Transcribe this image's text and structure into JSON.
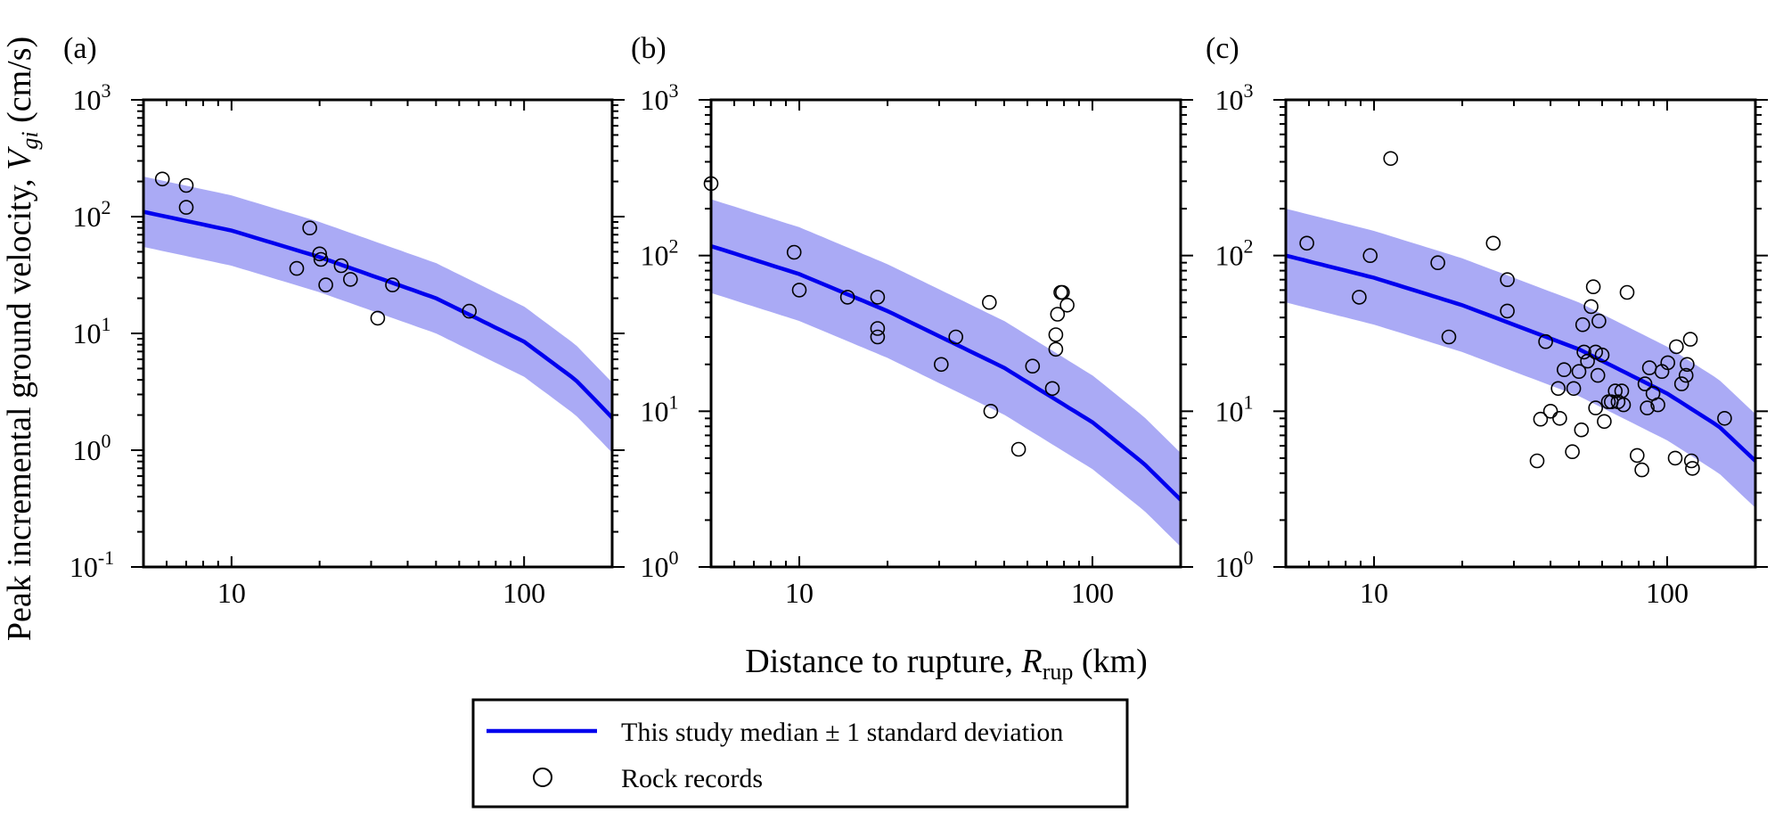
{
  "y_label": {
    "main": "Peak incremental ground velocity, ",
    "var": "V",
    "sub": "gi",
    "unit": " (cm/s)"
  },
  "x_label": {
    "main": "Distance to rupture, ",
    "var": "R",
    "sub": "rup",
    "unit": " (km)"
  },
  "legend": {
    "entries": [
      {
        "label": "This study median ± 1 standard deviation",
        "kind": "line-band"
      },
      {
        "label": "Rock records",
        "kind": "circle"
      }
    ]
  },
  "colors": {
    "median": "#0000ee",
    "band": "#aaaaf5",
    "axis": "#000000",
    "marker": "#000000"
  },
  "chart_data": [
    {
      "type": "scatter",
      "panel_label": "(a)",
      "x_scale": "log",
      "y_scale": "log",
      "xlim": [
        5,
        200
      ],
      "ylim": [
        0.1,
        1000
      ],
      "x_ticks": [
        {
          "value": 10,
          "label": "10"
        },
        {
          "value": 100,
          "label": "100"
        }
      ],
      "y_ticks": [
        {
          "value": 0.1,
          "base": "10",
          "exp": "-1"
        },
        {
          "value": 1,
          "base": "10",
          "exp": "0"
        },
        {
          "value": 10,
          "base": "10",
          "exp": "1"
        },
        {
          "value": 100,
          "base": "10",
          "exp": "2"
        },
        {
          "value": 1000,
          "base": "10",
          "exp": "3"
        }
      ],
      "median_curve": {
        "x": [
          5,
          10,
          20,
          50,
          100,
          150,
          200
        ],
        "y": [
          110,
          76,
          45,
          20,
          8.5,
          4.0,
          1.9
        ]
      },
      "std_band_factor": 2,
      "points": [
        [
          5.8,
          210
        ],
        [
          7.0,
          185
        ],
        [
          7.0,
          120
        ],
        [
          16.7,
          36
        ],
        [
          18.5,
          80
        ],
        [
          20,
          48
        ],
        [
          20.2,
          43
        ],
        [
          21,
          26
        ],
        [
          23.7,
          38
        ],
        [
          25.5,
          29
        ],
        [
          31.6,
          13.5
        ],
        [
          35.5,
          26
        ],
        [
          65,
          15.5
        ]
      ]
    },
    {
      "type": "scatter",
      "panel_label": "(b)",
      "x_scale": "log",
      "y_scale": "log",
      "xlim": [
        5,
        200
      ],
      "ylim": [
        1,
        1000
      ],
      "x_ticks": [
        {
          "value": 10,
          "label": "10"
        },
        {
          "value": 100,
          "label": "100"
        }
      ],
      "y_ticks": [
        {
          "value": 1,
          "base": "10",
          "exp": "0"
        },
        {
          "value": 10,
          "base": "10",
          "exp": "1"
        },
        {
          "value": 100,
          "base": "10",
          "exp": "2"
        },
        {
          "value": 1000,
          "base": "10",
          "exp": "3"
        }
      ],
      "median_curve": {
        "x": [
          5,
          10,
          20,
          50,
          100,
          150,
          200
        ],
        "y": [
          115,
          76,
          44,
          19,
          8.5,
          4.6,
          2.7
        ]
      },
      "std_band_factor": 2,
      "points": [
        [
          5,
          290
        ],
        [
          9.6,
          105
        ],
        [
          10,
          60
        ],
        [
          14.6,
          54
        ],
        [
          18.5,
          54
        ],
        [
          18.5,
          34
        ],
        [
          18.5,
          30
        ],
        [
          30.5,
          20
        ],
        [
          34.2,
          30
        ],
        [
          44.5,
          50
        ],
        [
          45,
          10
        ],
        [
          56,
          5.7
        ],
        [
          62.5,
          19.5
        ],
        [
          73,
          14
        ],
        [
          75,
          25
        ],
        [
          75,
          31
        ],
        [
          76,
          42
        ],
        [
          78,
          58
        ],
        [
          79,
          58
        ],
        [
          82,
          48
        ]
      ]
    },
    {
      "type": "scatter",
      "panel_label": "(c)",
      "x_scale": "log",
      "y_scale": "log",
      "xlim": [
        5,
        200
      ],
      "ylim": [
        1,
        1000
      ],
      "x_ticks": [
        {
          "value": 10,
          "label": "10"
        },
        {
          "value": 100,
          "label": "100"
        }
      ],
      "y_ticks": [
        {
          "value": 1,
          "base": "10",
          "exp": "0"
        },
        {
          "value": 10,
          "base": "10",
          "exp": "1"
        },
        {
          "value": 100,
          "base": "10",
          "exp": "2"
        },
        {
          "value": 1000,
          "base": "10",
          "exp": "3"
        }
      ],
      "median_curve": {
        "x": [
          5,
          10,
          20,
          50,
          100,
          150,
          200
        ],
        "y": [
          100,
          72,
          48,
          25,
          13,
          8.0,
          4.8
        ]
      },
      "std_band_factor": 2,
      "points": [
        [
          5.9,
          120
        ],
        [
          8.9,
          54
        ],
        [
          9.7,
          100
        ],
        [
          11.4,
          420
        ],
        [
          16.5,
          90
        ],
        [
          18,
          30
        ],
        [
          25.5,
          120
        ],
        [
          28.5,
          70
        ],
        [
          28.5,
          44
        ],
        [
          36,
          4.8
        ],
        [
          37,
          8.9
        ],
        [
          38.5,
          28
        ],
        [
          40,
          10
        ],
        [
          42.5,
          14
        ],
        [
          43,
          9
        ],
        [
          44.5,
          18.5
        ],
        [
          47.5,
          5.5
        ],
        [
          48,
          14
        ],
        [
          50,
          18
        ],
        [
          51,
          7.6
        ],
        [
          51.5,
          36
        ],
        [
          52,
          24
        ],
        [
          53.5,
          21
        ],
        [
          55,
          47
        ],
        [
          56,
          63
        ],
        [
          57,
          24
        ],
        [
          57,
          10.5
        ],
        [
          58,
          17
        ],
        [
          58.5,
          38
        ],
        [
          60,
          23
        ],
        [
          61,
          8.6
        ],
        [
          63,
          11.5
        ],
        [
          64.5,
          11.5
        ],
        [
          66.5,
          13.5
        ],
        [
          68,
          11.5
        ],
        [
          70,
          13.5
        ],
        [
          71,
          11
        ],
        [
          73,
          58
        ],
        [
          79,
          5.2
        ],
        [
          82,
          4.2
        ],
        [
          84,
          15
        ],
        [
          85.5,
          10.5
        ],
        [
          87,
          19
        ],
        [
          89.5,
          13
        ],
        [
          93,
          11
        ],
        [
          96,
          18
        ],
        [
          100.5,
          20.5
        ],
        [
          106.5,
          5
        ],
        [
          107.5,
          26
        ],
        [
          112,
          15
        ],
        [
          116,
          17
        ],
        [
          117,
          20
        ],
        [
          120,
          29
        ],
        [
          121,
          4.8
        ],
        [
          122,
          4.3
        ],
        [
          157,
          9
        ]
      ]
    }
  ]
}
